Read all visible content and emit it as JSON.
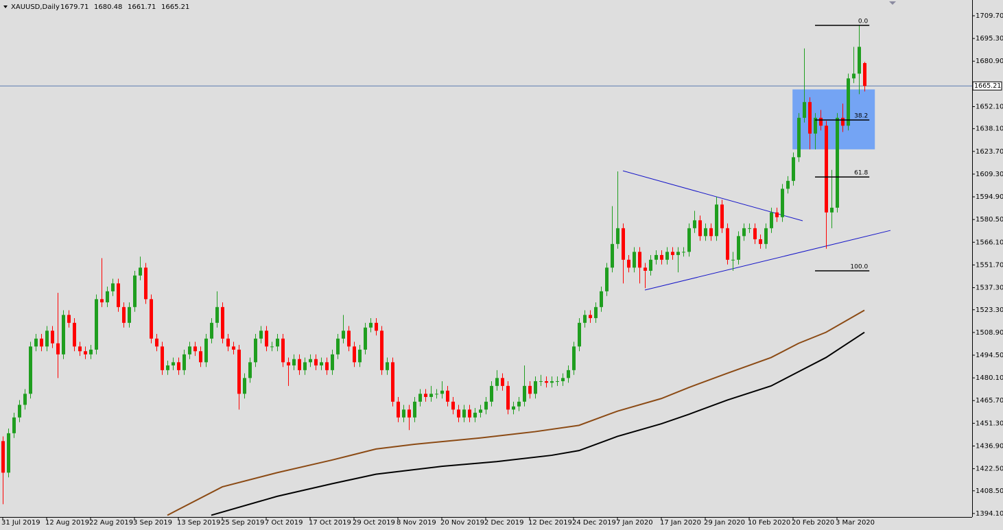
{
  "chart_data": {
    "type": "candlestick",
    "title": "XAUUSD,Daily",
    "categories": [
      "31 Jul 2019",
      null,
      null,
      null,
      null,
      null,
      null,
      null,
      "12 Aug 2019",
      null,
      null,
      null,
      null,
      null,
      null,
      null,
      "22 Aug 2019",
      null,
      null,
      null,
      null,
      null,
      null,
      null,
      "3 Sep 2019",
      null,
      null,
      null,
      null,
      null,
      null,
      null,
      "13 Sep 2019",
      null,
      null,
      null,
      null,
      null,
      null,
      null,
      "25 Sep 2019",
      null,
      null,
      null,
      null,
      null,
      null,
      null,
      "7 Oct 2019",
      null,
      null,
      null,
      null,
      null,
      null,
      null,
      "17 Oct 2019",
      null,
      null,
      null,
      null,
      null,
      null,
      null,
      "29 Oct 2019",
      null,
      null,
      null,
      null,
      null,
      null,
      null,
      "8 Nov 2019",
      null,
      null,
      null,
      null,
      null,
      null,
      null,
      "20 Nov 2019",
      null,
      null,
      null,
      null,
      null,
      null,
      null,
      "2 Dec 2019",
      null,
      null,
      null,
      null,
      null,
      null,
      null,
      "12 Dec 2019",
      null,
      null,
      null,
      null,
      null,
      null,
      null,
      "24 Dec 2019",
      null,
      null,
      null,
      null,
      null,
      null,
      null,
      "7 Jan 2020",
      null,
      null,
      null,
      null,
      null,
      null,
      null,
      "17 Jan 2020",
      null,
      null,
      null,
      null,
      null,
      null,
      null,
      "29 Jan 2020",
      null,
      null,
      null,
      null,
      null,
      null,
      null,
      "10 Feb 2020",
      null,
      null,
      null,
      null,
      null,
      null,
      null,
      "20 Feb 2020",
      null,
      null,
      null,
      null,
      null,
      null,
      null,
      "3 Mar 2020",
      null,
      null,
      null,
      null,
      null
    ],
    "candles": [
      [
        1440,
        1443,
        1400,
        1420
      ],
      [
        1420,
        1448,
        1417,
        1445
      ],
      [
        1445,
        1458,
        1442,
        1455
      ],
      [
        1455,
        1466,
        1452,
        1463
      ],
      [
        1463,
        1473,
        1460,
        1470
      ],
      [
        1470,
        1503,
        1467,
        1500
      ],
      [
        1500,
        1508,
        1497,
        1505
      ],
      [
        1505,
        1508,
        1497,
        1500
      ],
      [
        1500,
        1513,
        1497,
        1510
      ],
      [
        1510,
        1513,
        1499,
        1502
      ],
      [
        1502,
        1534,
        1480,
        1495
      ],
      [
        1495,
        1523,
        1492,
        1520
      ],
      [
        1520,
        1523,
        1512,
        1515
      ],
      [
        1515,
        1518,
        1497,
        1500
      ],
      [
        1500,
        1503,
        1494,
        1497
      ],
      [
        1497,
        1500,
        1492,
        1495
      ],
      [
        1495,
        1501,
        1492,
        1498
      ],
      [
        1498,
        1533,
        1495,
        1530
      ],
      [
        1530,
        1556,
        1525,
        1528
      ],
      [
        1528,
        1538,
        1525,
        1535
      ],
      [
        1535,
        1543,
        1532,
        1540
      ],
      [
        1540,
        1543,
        1522,
        1525
      ],
      [
        1525,
        1528,
        1512,
        1515
      ],
      [
        1515,
        1528,
        1512,
        1525
      ],
      [
        1525,
        1548,
        1522,
        1545
      ],
      [
        1545,
        1557,
        1542,
        1550
      ],
      [
        1550,
        1553,
        1527,
        1530
      ],
      [
        1530,
        1533,
        1502,
        1505
      ],
      [
        1505,
        1508,
        1497,
        1500
      ],
      [
        1500,
        1503,
        1482,
        1485
      ],
      [
        1485,
        1491,
        1482,
        1488
      ],
      [
        1488,
        1493,
        1485,
        1490
      ],
      [
        1490,
        1493,
        1482,
        1485
      ],
      [
        1485,
        1498,
        1482,
        1495
      ],
      [
        1495,
        1503,
        1492,
        1500
      ],
      [
        1500,
        1503,
        1494,
        1497
      ],
      [
        1497,
        1500,
        1487,
        1490
      ],
      [
        1490,
        1508,
        1487,
        1505
      ],
      [
        1505,
        1518,
        1502,
        1515
      ],
      [
        1515,
        1535,
        1512,
        1525
      ],
      [
        1525,
        1528,
        1502,
        1505
      ],
      [
        1505,
        1508,
        1497,
        1500
      ],
      [
        1500,
        1503,
        1495,
        1498
      ],
      [
        1498,
        1501,
        1460,
        1470
      ],
      [
        1470,
        1483,
        1467,
        1480
      ],
      [
        1480,
        1493,
        1477,
        1490
      ],
      [
        1490,
        1508,
        1487,
        1505
      ],
      [
        1505,
        1513,
        1502,
        1510
      ],
      [
        1510,
        1513,
        1497,
        1500
      ],
      [
        1500,
        1503,
        1497,
        1500
      ],
      [
        1500,
        1508,
        1497,
        1505
      ],
      [
        1505,
        1508,
        1487,
        1490
      ],
      [
        1490,
        1493,
        1475,
        1488
      ],
      [
        1488,
        1495,
        1485,
        1492
      ],
      [
        1492,
        1495,
        1482,
        1485
      ],
      [
        1485,
        1493,
        1482,
        1490
      ],
      [
        1490,
        1495,
        1487,
        1492
      ],
      [
        1492,
        1495,
        1485,
        1488
      ],
      [
        1488,
        1493,
        1485,
        1490
      ],
      [
        1490,
        1493,
        1482,
        1485
      ],
      [
        1485,
        1498,
        1482,
        1495
      ],
      [
        1495,
        1508,
        1492,
        1505
      ],
      [
        1505,
        1520,
        1502,
        1510
      ],
      [
        1510,
        1513,
        1497,
        1500
      ],
      [
        1500,
        1503,
        1487,
        1490
      ],
      [
        1490,
        1501,
        1487,
        1498
      ],
      [
        1498,
        1515,
        1495,
        1512
      ],
      [
        1512,
        1518,
        1509,
        1515
      ],
      [
        1515,
        1518,
        1507,
        1510
      ],
      [
        1510,
        1513,
        1482,
        1485
      ],
      [
        1485,
        1493,
        1482,
        1490
      ],
      [
        1490,
        1493,
        1462,
        1465
      ],
      [
        1465,
        1468,
        1452,
        1455
      ],
      [
        1455,
        1463,
        1452,
        1460
      ],
      [
        1460,
        1463,
        1447,
        1455
      ],
      [
        1455,
        1468,
        1452,
        1465
      ],
      [
        1465,
        1473,
        1462,
        1470
      ],
      [
        1470,
        1473,
        1465,
        1468
      ],
      [
        1468,
        1475,
        1465,
        1470
      ],
      [
        1470,
        1473,
        1467,
        1470
      ],
      [
        1470,
        1478,
        1467,
        1472
      ],
      [
        1472,
        1475,
        1462,
        1465
      ],
      [
        1465,
        1468,
        1457,
        1460
      ],
      [
        1460,
        1463,
        1452,
        1455
      ],
      [
        1455,
        1463,
        1452,
        1460
      ],
      [
        1460,
        1463,
        1452,
        1455
      ],
      [
        1455,
        1461,
        1452,
        1458
      ],
      [
        1458,
        1463,
        1455,
        1460
      ],
      [
        1460,
        1468,
        1457,
        1465
      ],
      [
        1465,
        1478,
        1462,
        1475
      ],
      [
        1475,
        1485,
        1472,
        1480
      ],
      [
        1480,
        1483,
        1472,
        1475
      ],
      [
        1475,
        1478,
        1457,
        1460
      ],
      [
        1460,
        1465,
        1457,
        1462
      ],
      [
        1462,
        1468,
        1459,
        1465
      ],
      [
        1465,
        1488,
        1462,
        1475
      ],
      [
        1475,
        1478,
        1467,
        1470
      ],
      [
        1470,
        1481,
        1467,
        1478
      ],
      [
        1478,
        1482,
        1475,
        1478
      ],
      [
        1478,
        1481,
        1474,
        1477
      ],
      [
        1477,
        1481,
        1474,
        1478
      ],
      [
        1478,
        1481,
        1475,
        1478
      ],
      [
        1478,
        1483,
        1475,
        1480
      ],
      [
        1480,
        1488,
        1477,
        1485
      ],
      [
        1485,
        1503,
        1482,
        1500
      ],
      [
        1500,
        1518,
        1497,
        1515
      ],
      [
        1515,
        1523,
        1512,
        1520
      ],
      [
        1520,
        1523,
        1515,
        1518
      ],
      [
        1518,
        1528,
        1515,
        1525
      ],
      [
        1525,
        1538,
        1522,
        1535
      ],
      [
        1535,
        1553,
        1532,
        1550
      ],
      [
        1550,
        1589,
        1547,
        1565
      ],
      [
        1565,
        1611,
        1562,
        1575
      ],
      [
        1575,
        1578,
        1540,
        1555
      ],
      [
        1555,
        1558,
        1547,
        1550
      ],
      [
        1550,
        1563,
        1547,
        1560
      ],
      [
        1560,
        1563,
        1540,
        1550
      ],
      [
        1550,
        1553,
        1537,
        1548
      ],
      [
        1548,
        1558,
        1545,
        1555
      ],
      [
        1555,
        1561,
        1552,
        1558
      ],
      [
        1558,
        1561,
        1552,
        1555
      ],
      [
        1555,
        1563,
        1552,
        1560
      ],
      [
        1560,
        1563,
        1555,
        1558
      ],
      [
        1558,
        1563,
        1547,
        1560
      ],
      [
        1560,
        1563,
        1557,
        1560
      ],
      [
        1560,
        1578,
        1557,
        1575
      ],
      [
        1575,
        1586,
        1572,
        1580
      ],
      [
        1580,
        1583,
        1567,
        1570
      ],
      [
        1570,
        1578,
        1567,
        1575
      ],
      [
        1575,
        1578,
        1567,
        1570
      ],
      [
        1570,
        1595,
        1567,
        1590
      ],
      [
        1590,
        1593,
        1572,
        1575
      ],
      [
        1575,
        1578,
        1552,
        1555
      ],
      [
        1555,
        1560,
        1548,
        1555
      ],
      [
        1555,
        1573,
        1552,
        1570
      ],
      [
        1570,
        1578,
        1567,
        1575
      ],
      [
        1575,
        1578,
        1572,
        1575
      ],
      [
        1575,
        1578,
        1565,
        1568
      ],
      [
        1568,
        1571,
        1562,
        1565
      ],
      [
        1565,
        1578,
        1562,
        1575
      ],
      [
        1575,
        1588,
        1572,
        1585
      ],
      [
        1585,
        1588,
        1579,
        1582
      ],
      [
        1582,
        1603,
        1579,
        1600
      ],
      [
        1600,
        1608,
        1597,
        1605
      ],
      [
        1605,
        1623,
        1602,
        1620
      ],
      [
        1620,
        1648,
        1617,
        1645
      ],
      [
        1645,
        1689,
        1642,
        1655
      ],
      [
        1655,
        1658,
        1625,
        1635
      ],
      [
        1635,
        1648,
        1625,
        1645
      ],
      [
        1645,
        1650,
        1637,
        1640
      ],
      [
        1640,
        1643,
        1562,
        1585
      ],
      [
        1585,
        1612,
        1575,
        1588
      ],
      [
        1588,
        1648,
        1585,
        1645
      ],
      [
        1645,
        1654,
        1636,
        1640
      ],
      [
        1640,
        1673,
        1637,
        1670
      ],
      [
        1670,
        1690,
        1667,
        1673
      ],
      [
        1673,
        1704,
        1660,
        1690
      ],
      [
        1679.71,
        1680.48,
        1661.71,
        1665.21
      ]
    ],
    "up_color": "#1f9e1f",
    "down_color": "#ff0000",
    "series": [
      {
        "color": "#8b4a14",
        "x": [
          30,
          40,
          50,
          60,
          68,
          75,
          87,
          97,
          105,
          112,
          120,
          125,
          132,
          140,
          145,
          150,
          157
        ],
        "values": [
          1393,
          1411,
          1420,
          1428,
          1435,
          1438,
          1442,
          1446,
          1450,
          1459,
          1467,
          1474,
          1483,
          1493,
          1502,
          1509,
          1523
        ]
      },
      {
        "color": "#000000",
        "x": [
          38,
          50,
          60,
          68,
          80,
          90,
          100,
          105,
          112,
          120,
          125,
          132,
          140,
          145,
          150,
          157
        ],
        "values": [
          1393,
          1405,
          1413,
          1419,
          1424,
          1427,
          1431,
          1434,
          1443,
          1451,
          1457,
          1466,
          1475,
          1484,
          1493,
          1509
        ]
      }
    ],
    "fibo": [
      {
        "label": "0.0",
        "price": 1703.6
      },
      {
        "label": "38.2",
        "price": 1643.6
      },
      {
        "label": "61.8",
        "price": 1607.5
      },
      {
        "label": "100.0",
        "price": 1548
      }
    ],
    "fibo_x": [
      148,
      157.9
    ],
    "rectangle": {
      "x": [
        143.9,
        158.9
      ],
      "price": [
        1625,
        1663
      ],
      "color": "#74a4f4"
    },
    "trendlines": [
      [
        113,
        1611.4,
        145.75,
        1579.7
      ],
      [
        117,
        1535.8,
        161.75,
        1573.6
      ]
    ],
    "trendline_color": "#1414c8",
    "price_line_color": "#5b7bb0",
    "xlim": [
      -0.5,
      176.625
    ],
    "ylim": [
      1391.9,
      1719.7
    ],
    "yticks": [
      {
        "value": 1709.7,
        "label": "1709.70"
      },
      {
        "value": 1695.3,
        "label": "1695.30"
      },
      {
        "value": 1680.9,
        "label": "1680.90"
      },
      {
        "value": 1652.1,
        "label": "1652.10"
      },
      {
        "value": 1638.1,
        "label": "1638.10"
      },
      {
        "value": 1623.7,
        "label": "1623.70"
      },
      {
        "value": 1609.3,
        "label": "1609.30"
      },
      {
        "value": 1594.9,
        "label": "1594.90"
      },
      {
        "value": 1580.5,
        "label": "1580.50"
      },
      {
        "value": 1566.1,
        "label": "1566.10"
      },
      {
        "value": 1551.7,
        "label": "1551.70"
      },
      {
        "value": 1537.3,
        "label": "1537.30"
      },
      {
        "value": 1523.3,
        "label": "1523.30"
      },
      {
        "value": 1508.9,
        "label": "1508.90"
      },
      {
        "value": 1494.5,
        "label": "1494.50"
      },
      {
        "value": 1480.1,
        "label": "1480.10"
      },
      {
        "value": 1465.7,
        "label": "1465.70"
      },
      {
        "value": 1451.3,
        "label": "1451.30"
      },
      {
        "value": 1436.9,
        "label": "1436.90"
      },
      {
        "value": 1422.5,
        "label": "1422.50"
      },
      {
        "value": 1408.5,
        "label": "1408.50"
      },
      {
        "value": 1394.1,
        "label": "1394.10"
      }
    ]
  }
}
